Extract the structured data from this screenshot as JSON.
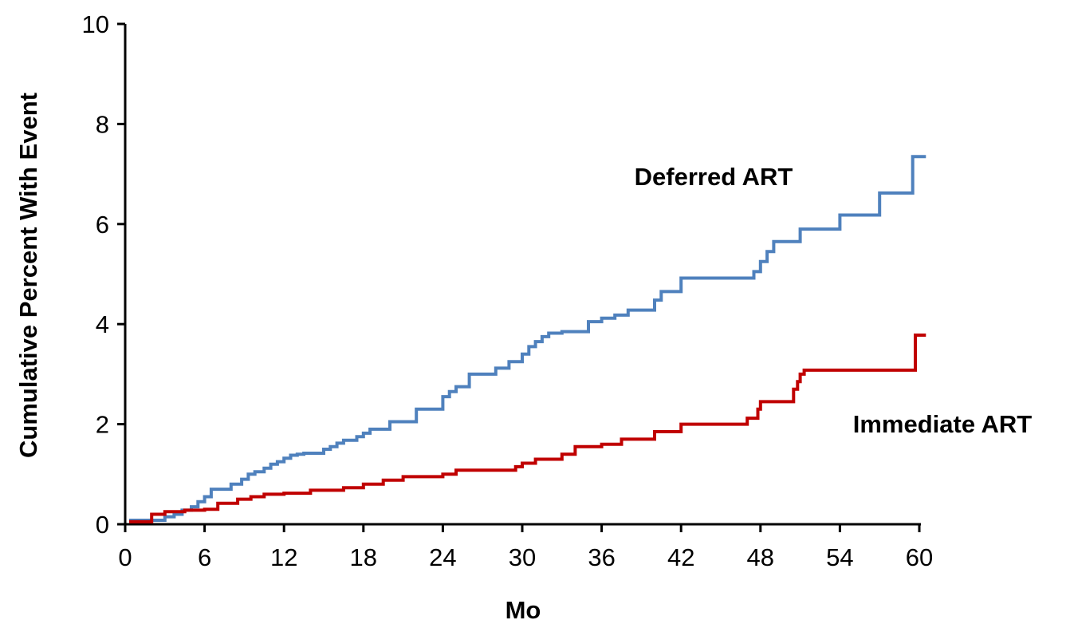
{
  "chart_data": {
    "type": "line",
    "step": true,
    "xlabel": "Mo",
    "ylabel": "Cumulative Percent With Event",
    "xlim": [
      0,
      60
    ],
    "ylim": [
      0,
      10
    ],
    "xticks": [
      0,
      6,
      12,
      18,
      24,
      30,
      36,
      42,
      48,
      54,
      60
    ],
    "yticks": [
      0,
      2,
      4,
      6,
      8,
      10
    ],
    "grid": false,
    "legend": "none",
    "series": [
      {
        "name": "Deferred ART",
        "color": "#4f81bd",
        "x": [
          0.3,
          3.0,
          3.7,
          4.3,
          5.0,
          5.5,
          6.0,
          6.5,
          8.0,
          8.8,
          9.3,
          9.8,
          10.5,
          11.0,
          11.5,
          12.0,
          12.5,
          13.0,
          13.5,
          15.0,
          15.5,
          16.0,
          16.5,
          17.5,
          18.0,
          18.5,
          20.0,
          22.0,
          24.0,
          24.5,
          25.0,
          26.0,
          28.0,
          29.0,
          30.0,
          30.5,
          31.0,
          31.5,
          32.0,
          33.0,
          35.0,
          36.0,
          37.0,
          38.0,
          40.0,
          40.5,
          42.0,
          47.5,
          48.0,
          48.5,
          49.0,
          51.0,
          54.0,
          57.0,
          59.5,
          60.5
        ],
        "y": [
          0.08,
          0.15,
          0.2,
          0.28,
          0.35,
          0.45,
          0.55,
          0.7,
          0.8,
          0.9,
          1.0,
          1.05,
          1.12,
          1.2,
          1.25,
          1.32,
          1.38,
          1.4,
          1.42,
          1.5,
          1.55,
          1.62,
          1.68,
          1.75,
          1.82,
          1.9,
          2.05,
          2.3,
          2.55,
          2.65,
          2.75,
          3.0,
          3.12,
          3.25,
          3.4,
          3.55,
          3.65,
          3.75,
          3.82,
          3.85,
          4.05,
          4.12,
          4.18,
          4.28,
          4.48,
          4.65,
          4.92,
          5.05,
          5.25,
          5.45,
          5.65,
          5.9,
          6.18,
          6.62,
          7.35,
          7.35
        ]
      },
      {
        "name": "Immediate ART",
        "color": "#c00000",
        "x": [
          0.3,
          2.0,
          3.0,
          4.5,
          6.0,
          7.0,
          8.5,
          9.5,
          10.5,
          12.0,
          14.0,
          16.5,
          18.0,
          19.5,
          21.0,
          24.0,
          25.0,
          29.5,
          30.0,
          31.0,
          33.0,
          34.0,
          36.0,
          37.5,
          40.0,
          42.0,
          47.0,
          47.8,
          48.0,
          50.5,
          50.8,
          51.0,
          51.3,
          59.5,
          59.7,
          60.5
        ],
        "y": [
          0.05,
          0.2,
          0.25,
          0.28,
          0.3,
          0.42,
          0.5,
          0.55,
          0.6,
          0.62,
          0.68,
          0.73,
          0.8,
          0.88,
          0.95,
          1.0,
          1.08,
          1.15,
          1.22,
          1.3,
          1.4,
          1.55,
          1.6,
          1.7,
          1.85,
          2.0,
          2.12,
          2.3,
          2.45,
          2.7,
          2.85,
          3.0,
          3.08,
          3.08,
          3.78,
          3.78
        ]
      }
    ]
  }
}
